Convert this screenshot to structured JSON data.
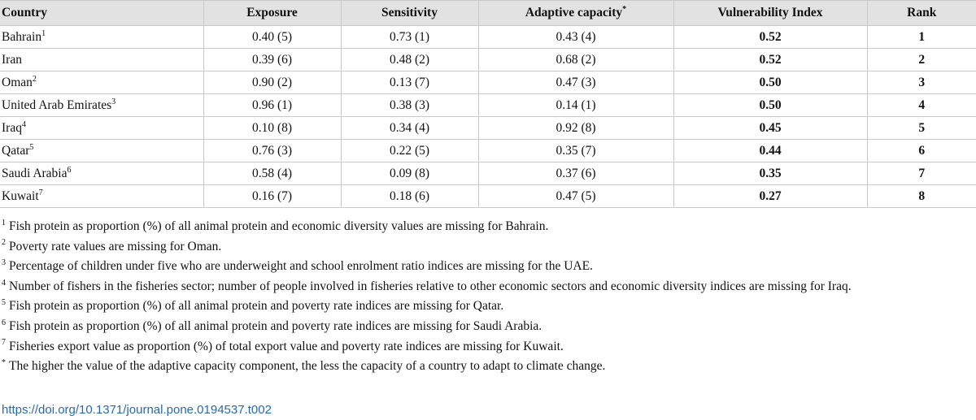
{
  "table": {
    "headers": [
      "Country",
      "Exposure",
      "Sensitivity",
      "Adaptive capacity",
      "Vulnerability Index",
      "Rank"
    ],
    "header_sups": [
      "",
      "",
      "",
      "*",
      "",
      ""
    ],
    "rows": [
      {
        "country": "Bahrain",
        "sup": "1",
        "exposure": "0.40 (5)",
        "sensitivity": "0.73 (1)",
        "adaptive": "0.43 (4)",
        "vi": "0.52",
        "rank": "1"
      },
      {
        "country": "Iran",
        "sup": "",
        "exposure": "0.39 (6)",
        "sensitivity": "0.48 (2)",
        "adaptive": "0.68 (2)",
        "vi": "0.52",
        "rank": "2"
      },
      {
        "country": "Oman",
        "sup": "2",
        "exposure": "0.90 (2)",
        "sensitivity": "0.13 (7)",
        "adaptive": "0.47 (3)",
        "vi": "0.50",
        "rank": "3"
      },
      {
        "country": "United Arab Emirates",
        "sup": "3",
        "exposure": "0.96 (1)",
        "sensitivity": "0.38 (3)",
        "adaptive": "0.14 (1)",
        "vi": "0.50",
        "rank": "4"
      },
      {
        "country": "Iraq",
        "sup": "4",
        "exposure": "0.10 (8)",
        "sensitivity": "0.34 (4)",
        "adaptive": "0.92 (8)",
        "vi": "0.45",
        "rank": "5"
      },
      {
        "country": "Qatar",
        "sup": "5",
        "exposure": "0.76 (3)",
        "sensitivity": "0.22 (5)",
        "adaptive": "0.35 (7)",
        "vi": "0.44",
        "rank": "6"
      },
      {
        "country": "Saudi Arabia",
        "sup": "6",
        "exposure": "0.58 (4)",
        "sensitivity": "0.09 (8)",
        "adaptive": "0.37 (6)",
        "vi": "0.35",
        "rank": "7"
      },
      {
        "country": "Kuwait",
        "sup": "7",
        "exposure": "0.16 (7)",
        "sensitivity": "0.18 (6)",
        "adaptive": "0.47 (5)",
        "vi": "0.27",
        "rank": "8"
      }
    ]
  },
  "footnotes": [
    {
      "mark": "1",
      "text": "Fish protein as proportion (%) of all animal protein and economic diversity values are missing for Bahrain."
    },
    {
      "mark": "2",
      "text": "Poverty rate values are missing for Oman."
    },
    {
      "mark": "3",
      "text": "Percentage of children under five who are underweight and school enrolment ratio indices are missing for the UAE."
    },
    {
      "mark": "4",
      "text": "Number of fishers in the fisheries sector; number of people involved in fisheries relative to other economic sectors and economic diversity indices are missing for Iraq."
    },
    {
      "mark": "5",
      "text": "Fish protein as proportion (%) of all animal protein and poverty rate indices are missing for Qatar."
    },
    {
      "mark": "6",
      "text": "Fish protein as proportion (%) of all animal protein and poverty rate indices are missing for Saudi Arabia."
    },
    {
      "mark": "7",
      "text": "Fisheries export value as proportion (%) of total export value and poverty rate indices are missing for Kuwait."
    },
    {
      "mark": "*",
      "text": "The higher the value of the adaptive capacity component, the less the capacity of a country to adapt to climate change."
    }
  ],
  "doi_link": "https://doi.org/10.1371/journal.pone.0194537.t002"
}
